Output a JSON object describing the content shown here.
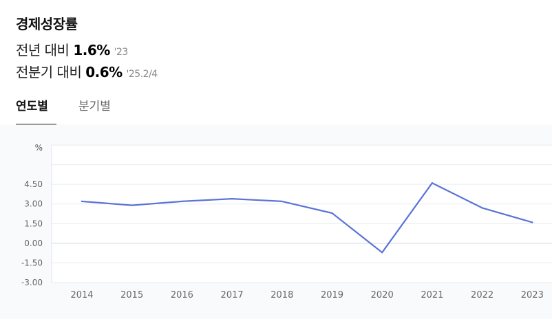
{
  "header": {
    "title": "경제성장률",
    "stat_yearly": {
      "label": "전년 대비",
      "value": "1.6%",
      "ref": "'23"
    },
    "stat_quarterly": {
      "label": "전분기 대비",
      "value": "0.6%",
      "ref": "'25.2/4"
    }
  },
  "tabs": [
    {
      "label": "연도별",
      "active": true
    },
    {
      "label": "분기별",
      "active": false
    }
  ],
  "colors": {
    "line": "#5b74d6",
    "active_tab": "#111111",
    "grid": "#e8eaef"
  },
  "chart_data": {
    "type": "line",
    "ylabel": "%",
    "x": [
      "2014",
      "2015",
      "2016",
      "2017",
      "2018",
      "2019",
      "2020",
      "2021",
      "2022",
      "2023"
    ],
    "series": [
      {
        "values": [
          3.2,
          2.9,
          3.2,
          3.4,
          3.2,
          2.3,
          -0.7,
          4.6,
          2.7,
          1.6
        ]
      }
    ],
    "yticks": [
      "4.50",
      "3.00",
      "1.50",
      "0.00",
      "-1.50",
      "-3.00"
    ],
    "ylim": [
      -3,
      7.5
    ],
    "grid": true
  }
}
